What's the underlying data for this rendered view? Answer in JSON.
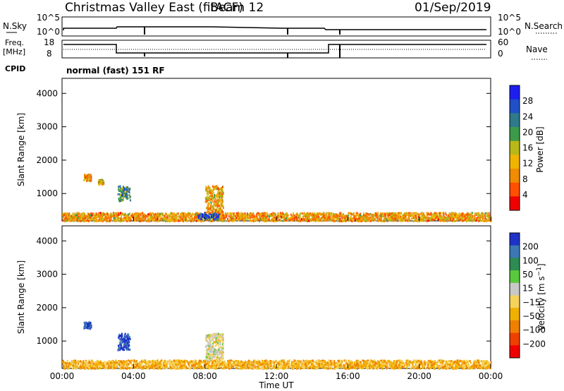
{
  "header": {
    "title": "Christmas Valley East (fitACF)",
    "beam": "Beam 12",
    "date": "01/Sep/2019"
  },
  "nsky_panel": {
    "left_label": "N.Sky",
    "left_ticks": [
      "10^5",
      "10^0"
    ],
    "right_ticks": [
      "10^5",
      "10^0"
    ],
    "right_label": "N.Search"
  },
  "freq_panel": {
    "left_label_line1": "Freq.",
    "left_label_line2": "[MHz]",
    "left_ticks": [
      "18",
      "8"
    ],
    "right_ticks": [
      "60",
      "0"
    ],
    "right_label": "Nave"
  },
  "cpid_label": "CPID",
  "mode_text": "normal (fast) 151 RF",
  "x_axis": {
    "title": "Time UT",
    "ticks": [
      "00:00",
      "04:00",
      "08:00",
      "12:00",
      "16:00",
      "20:00",
      "00:00"
    ]
  },
  "chart_data": [
    {
      "type": "heatmap",
      "title": "",
      "xlabel": "",
      "ylabel": "Slant Range [km]",
      "x_range_hours": [
        0,
        24
      ],
      "y_ticks": [
        1000,
        2000,
        3000,
        4000
      ],
      "ylim": [
        180,
        4450
      ],
      "colorbar": {
        "label": "Power [dB]",
        "tick_labels": [
          "28",
          "24",
          "20",
          "16",
          "12",
          "8",
          "4"
        ],
        "range": [
          0,
          30
        ]
      },
      "features": [
        {
          "name": "near-range band",
          "x": [
            0,
            24
          ],
          "y": [
            200,
            450
          ],
          "value_dB": 10
        },
        {
          "name": "enhancement",
          "x": [
            7.6,
            8.8
          ],
          "y": [
            250,
            450
          ],
          "value_dB": 26
        },
        {
          "name": "patch",
          "x": [
            3.1,
            3.8
          ],
          "y": [
            800,
            1250
          ],
          "value_dB": 20
        },
        {
          "name": "rising feature",
          "x": [
            8.0,
            9.0
          ],
          "y": [
            450,
            1250
          ],
          "value_dB": 11
        },
        {
          "name": "patch",
          "x": [
            1.2,
            1.6
          ],
          "y": [
            1400,
            1600
          ],
          "value_dB": 9
        },
        {
          "name": "patch",
          "x": [
            2.0,
            2.3
          ],
          "y": [
            1300,
            1450
          ],
          "value_dB": 12
        }
      ]
    },
    {
      "type": "heatmap",
      "title": "",
      "xlabel": "Time UT",
      "ylabel": "Slant Range [km]",
      "x_range_hours": [
        0,
        24
      ],
      "y_ticks": [
        1000,
        2000,
        3000,
        4000
      ],
      "ylim": [
        180,
        4450
      ],
      "colorbar": {
        "label": "Velocity [m s^-1]",
        "tick_labels": [
          "200",
          "100",
          "50",
          "15",
          "−15",
          "−50",
          "−100",
          "−200"
        ],
        "range": [
          -250,
          250
        ]
      },
      "features": [
        {
          "name": "near-range band",
          "x": [
            0,
            24
          ],
          "y": [
            200,
            450
          ],
          "value_ms": -70
        },
        {
          "name": "patch",
          "x": [
            3.1,
            3.8
          ],
          "y": [
            750,
            1250
          ],
          "value_ms": 220
        },
        {
          "name": "patch",
          "x": [
            1.2,
            1.6
          ],
          "y": [
            1400,
            1600
          ],
          "value_ms": 220
        },
        {
          "name": "rising feature",
          "x": [
            8.0,
            9.0
          ],
          "y": [
            450,
            1250
          ],
          "value_ms": 0
        }
      ]
    }
  ],
  "colors": {
    "power_scale": [
      "#1e1ef0",
      "#2050c8",
      "#2f7a8a",
      "#3d9a4a",
      "#b8b818",
      "#f0b400",
      "#f08c00",
      "#ff5000",
      "#f00000"
    ],
    "velocity_scale": [
      "#1e32c8",
      "#3c78b4",
      "#2e8c52",
      "#5ac83c",
      "#c8c8c8",
      "#f5d25a",
      "#f0b000",
      "#f08000",
      "#f04000",
      "#f00000"
    ]
  }
}
